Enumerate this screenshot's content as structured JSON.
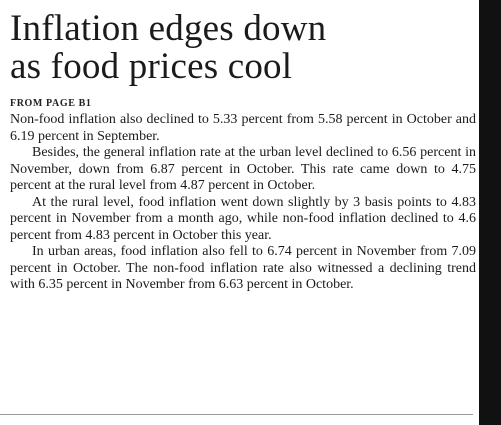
{
  "article": {
    "headline_line1": "Inflation edges down",
    "headline_line2": "as food prices cool",
    "from_page": "FROM PAGE B1",
    "paragraphs": [
      "Non-food inflation also declined to 5.33 percent from 5.58 percent in October and 6.19 percent in September.",
      "Besides, the general inflation rate at the urban level declined to 6.56 percent in November, down from 6.87 percent in October. This rate came down to 4.75 percent at the rural level from 4.87 percent in October.",
      "At the rural level, food inflation went down slightly by 3 basis points to 4.83 percent in November from a month ago, while non-food inflation declined to 4.6 percent from 4.83 percent in October this year.",
      "In urban areas, food inflation also fell to 6.74 percent in November from 7.09 percent in October. The non-food inflation rate also witnessed a declining trend with 6.35 percent in November from 6.63 percent in October."
    ]
  }
}
